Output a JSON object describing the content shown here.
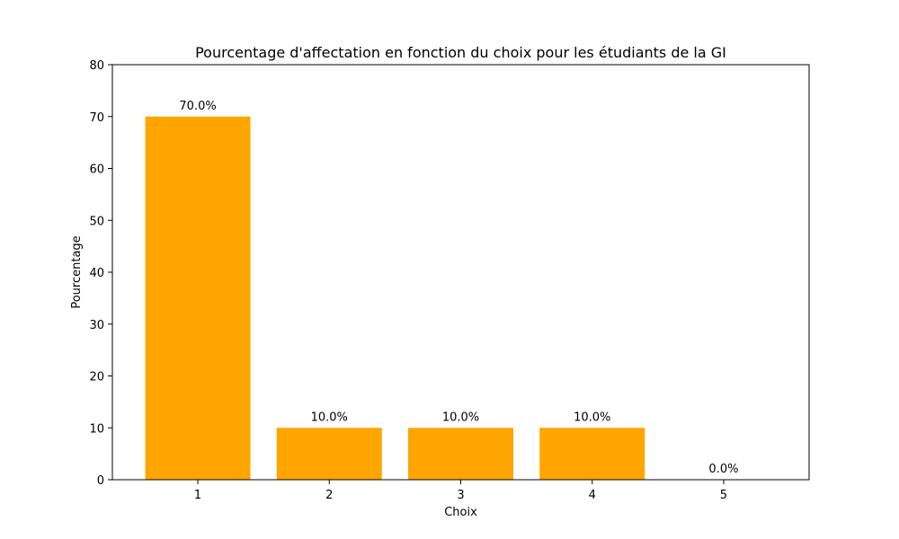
{
  "chart_data": {
    "type": "bar",
    "title": "Pourcentage d'affectation en fonction du choix pour les étudiants de la GI",
    "xlabel": "Choix",
    "ylabel": "Pourcentage",
    "categories": [
      "1",
      "2",
      "3",
      "4",
      "5"
    ],
    "values": [
      70.0,
      10.0,
      10.0,
      10.0,
      0.0
    ],
    "data_labels": [
      "70.0%",
      "10.0%",
      "10.0%",
      "10.0%",
      "0.0%"
    ],
    "ylim": [
      0,
      80
    ],
    "yticks": [
      0,
      10,
      20,
      30,
      40,
      50,
      60,
      70,
      80
    ],
    "ytick_labels": [
      "0",
      "10",
      "20",
      "30",
      "40",
      "50",
      "60",
      "70",
      "80"
    ],
    "bar_color": "#ffa500",
    "grid": false,
    "legend": "none"
  }
}
